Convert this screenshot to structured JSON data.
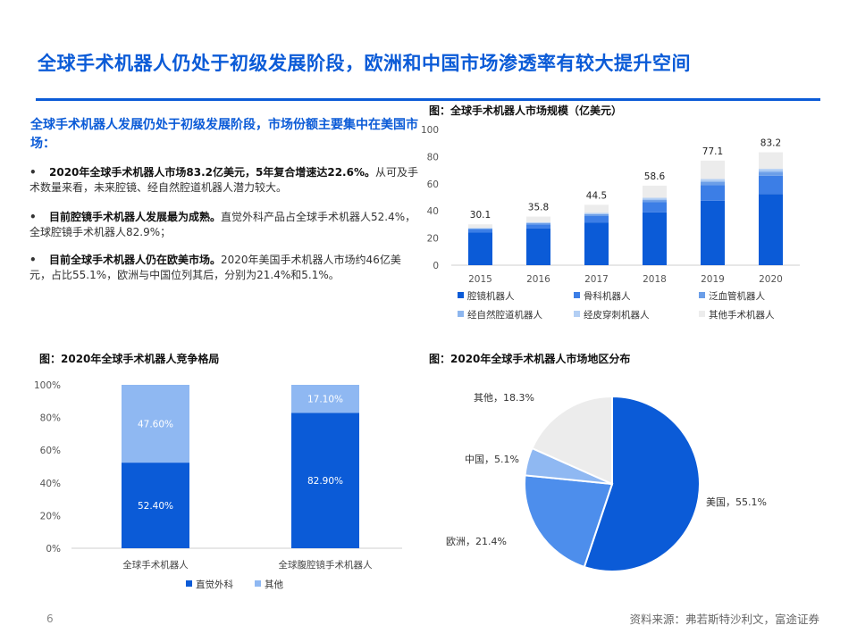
{
  "page": {
    "title": "全球手术机器人仍处于初级发展阶段，欧洲和中国市场渗透率有较大提升空间",
    "page_number": "6",
    "source": "资料来源：弗若斯特沙利文，富途证券"
  },
  "summary": {
    "heading": "全球手术机器人发展仍处于初级发展阶段，市场份额主要集中在美国市场：",
    "bullets": [
      {
        "marker": "•",
        "bold": "2020年全球手术机器人市场83.2亿美元，5年复合增速达22.6%。",
        "text": "从可及手术数量来看，未来腔镜、经自然腔道机器人潜力较大。"
      },
      {
        "marker": "•",
        "bold": "目前腔镜手术机器人发展最为成熟。",
        "text": "直觉外科产品占全球手术机器人52.4%，全球腔镜手术机器人82.9%；"
      },
      {
        "marker": "•",
        "bold": "目前全球手术机器人仍在欧美市场。",
        "text": "2020年美国手术机器人市场约46亿美元，占比55.1%，欧洲与中国位列其后，分别为21.4%和5.1%。"
      }
    ]
  },
  "colors": {
    "title_blue": "#0b5bd7",
    "laparoscopic": "#0b5bd7",
    "orthopedic": "#3c7ee6",
    "vascular": "#6b9ee8",
    "natural_orifice": "#8db6ee",
    "percutaneous": "#b3cff4",
    "other": "#ececec",
    "intuitive": "#0b5bd7",
    "others_share": "#8fb8f2",
    "usa": "#0b5bd7",
    "europe": "#4d8eec",
    "china": "#8fb8f2",
    "other_region": "#ececec"
  },
  "chart_data": [
    {
      "type": "bar",
      "stacked": true,
      "title": "图：全球手术机器人市场规模（亿美元）",
      "categories": [
        "2015",
        "2016",
        "2017",
        "2018",
        "2019",
        "2020"
      ],
      "totals": [
        30.1,
        35.8,
        44.5,
        58.6,
        77.1,
        83.2
      ],
      "total_labels": [
        "30.1",
        "35.8",
        "44.5",
        "58.6",
        "77.1",
        "83.2"
      ],
      "ylim": [
        0,
        100
      ],
      "yticks": [
        "0",
        "20",
        "40",
        "60",
        "80",
        "100"
      ],
      "series": [
        {
          "name": "腔镜机器人",
          "color_key": "laparoscopic",
          "values": [
            24.0,
            27.2,
            31.5,
            39.0,
            47.5,
            52.5
          ]
        },
        {
          "name": "骨科机器人",
          "color_key": "orthopedic",
          "values": [
            2.3,
            2.9,
            4.7,
            7.4,
            11.6,
            13.4
          ]
        },
        {
          "name": "泛血管机器人",
          "color_key": "vascular",
          "values": [
            0.8,
            1.0,
            1.3,
            1.6,
            2.3,
            2.5
          ]
        },
        {
          "name": "经自然腔道机器人",
          "color_key": "natural_orifice",
          "values": [
            0.0,
            0.0,
            0.2,
            0.5,
            0.7,
            1.0
          ]
        },
        {
          "name": "经皮穿刺机器人",
          "color_key": "percutaneous",
          "values": [
            0.4,
            0.6,
            0.8,
            1.2,
            1.4,
            1.6
          ]
        },
        {
          "name": "其他手术机器人",
          "color_key": "other",
          "values": [
            2.6,
            4.1,
            6.0,
            8.9,
            13.6,
            12.2
          ]
        }
      ],
      "legend_position": "bottom",
      "grid": false
    },
    {
      "type": "bar",
      "stacked": true,
      "percent": true,
      "title": "图：2020年全球手术机器人竞争格局",
      "categories": [
        "全球手术机器人",
        "全球腹腔镜手术机器人"
      ],
      "ylim": [
        0,
        100
      ],
      "yticks": [
        "0%",
        "20%",
        "40%",
        "60%",
        "80%",
        "100%"
      ],
      "series": [
        {
          "name": "直觉外科",
          "color_key": "intuitive",
          "values": [
            52.4,
            82.9
          ],
          "labels": [
            "52.40%",
            "82.90%"
          ]
        },
        {
          "name": "其他",
          "color_key": "others_share",
          "values": [
            47.6,
            17.1
          ],
          "labels": [
            "47.60%",
            "17.10%"
          ]
        }
      ],
      "legend_position": "bottom",
      "grid": false
    },
    {
      "type": "pie",
      "title": "图：2020年全球手术机器人市场地区分布",
      "slices": [
        {
          "label": "美国，55.1%",
          "value": 55.1,
          "color_key": "usa"
        },
        {
          "label": "欧洲，21.4%",
          "value": 21.4,
          "color_key": "europe"
        },
        {
          "label": "中国，5.1%",
          "value": 5.1,
          "color_key": "china"
        },
        {
          "label": "其他，18.3%",
          "value": 18.3,
          "color_key": "other_region"
        }
      ]
    }
  ]
}
